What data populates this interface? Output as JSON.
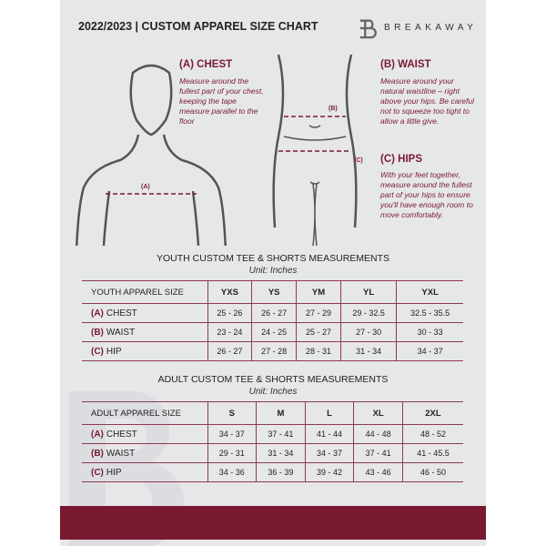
{
  "header": {
    "title": "2022/2023  |  CUSTOM APPAREL SIZE CHART",
    "brand": "BREAKAWAY"
  },
  "guide": {
    "chest": {
      "title": "(A) CHEST",
      "text": "Measure around the fullest part of your chest, keeping the tape measure parallel to the floor",
      "marker": "(A)"
    },
    "waist": {
      "title": "(B) WAIST",
      "text": "Measure around your natural waistline – right above your hips. Be careful not to squeeze too tight to allow a little give.",
      "marker": "(B)"
    },
    "hips": {
      "title": "(C) HIPS",
      "text": "With your feet together, measure around the fullest part of your hips to ensure you'll have enough room to move comfortably.",
      "marker": "(C)"
    }
  },
  "youth": {
    "title": "YOUTH CUSTOM TEE & SHORTS MEASUREMENTS",
    "unit": "Unit: Inches",
    "header": [
      "YOUTH APPAREL SIZE",
      "YXS",
      "YS",
      "YM",
      "YL",
      "YXL"
    ],
    "rows": [
      {
        "letter": "(A)",
        "label": "CHEST",
        "values": [
          "25 - 26",
          "26 - 27",
          "27 - 29",
          "29 - 32.5",
          "32.5 - 35.5"
        ]
      },
      {
        "letter": "(B)",
        "label": "WAIST",
        "values": [
          "23 - 24",
          "24 - 25",
          "25 - 27",
          "27 - 30",
          "30 - 33"
        ]
      },
      {
        "letter": "(C)",
        "label": "HIP",
        "values": [
          "26 - 27",
          "27 - 28",
          "28 - 31",
          "31 - 34",
          "34 - 37"
        ]
      }
    ]
  },
  "adult": {
    "title": "ADULT CUSTOM TEE & SHORTS MEASUREMENTS",
    "unit": "Unit: Inches",
    "header": [
      "ADULT APPAREL SIZE",
      "S",
      "M",
      "L",
      "XL",
      "2XL"
    ],
    "rows": [
      {
        "letter": "(A)",
        "label": "CHEST",
        "values": [
          "34 - 37",
          "37 - 41",
          "41 - 44",
          "44 - 48",
          "48 - 52"
        ]
      },
      {
        "letter": "(B)",
        "label": "WAIST",
        "values": [
          "29 - 31",
          "31 - 34",
          "34 - 37",
          "37 - 41",
          "41 - 45.5"
        ]
      },
      {
        "letter": "(C)",
        "label": "HIP",
        "values": [
          "34 - 36",
          "36 - 39",
          "39 - 42",
          "43 - 46",
          "46 - 50"
        ]
      }
    ]
  },
  "colors": {
    "accent": "#7a1a31",
    "panel": "#e6e7e9"
  }
}
